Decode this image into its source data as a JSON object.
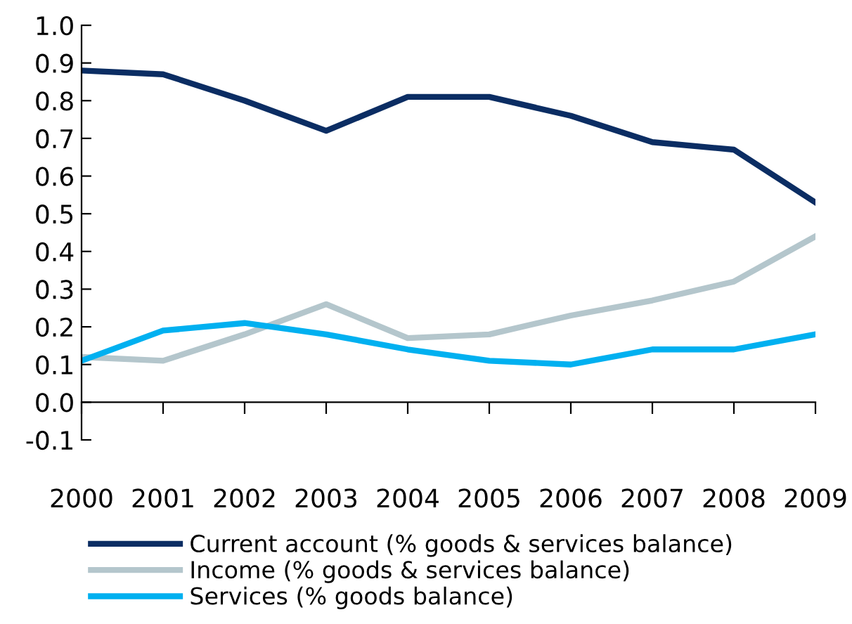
{
  "chart_data": {
    "type": "line",
    "categories": [
      "2000",
      "2001",
      "2002",
      "2003",
      "2004",
      "2005",
      "2006",
      "2007",
      "2008",
      "2009"
    ],
    "series": [
      {
        "name": "Current account (% goods & services balance)",
        "color": "#0b2d63",
        "values": [
          0.88,
          0.87,
          0.8,
          0.72,
          0.81,
          0.81,
          0.76,
          0.69,
          0.67,
          0.53
        ]
      },
      {
        "name": "Income (% goods & services balance)",
        "color": "#b4c6cc",
        "values": [
          0.12,
          0.11,
          0.18,
          0.26,
          0.17,
          0.18,
          0.23,
          0.27,
          0.32,
          0.44
        ]
      },
      {
        "name": "Services (% goods balance)",
        "color": "#00b0f0",
        "values": [
          0.11,
          0.19,
          0.21,
          0.18,
          0.14,
          0.11,
          0.1,
          0.14,
          0.14,
          0.18
        ]
      }
    ],
    "ylim": [
      -0.1,
      1.0
    ],
    "yticks": [
      {
        "value": -0.1,
        "label": "-0.1"
      },
      {
        "value": 0,
        "label": "0.0"
      },
      {
        "value": 0.1,
        "label": "0.1"
      },
      {
        "value": 0.2,
        "label": "0.2"
      },
      {
        "value": 0.3,
        "label": "0.3"
      },
      {
        "value": 0.4,
        "label": "0.4"
      },
      {
        "value": 0.5,
        "label": "0.5"
      },
      {
        "value": 0.6,
        "label": "0.6"
      },
      {
        "value": 0.7,
        "label": "0.7"
      },
      {
        "value": 0.8,
        "label": "0.8"
      },
      {
        "value": 0.9,
        "label": "0.9"
      },
      {
        "value": 1.0,
        "label": "1.0"
      }
    ],
    "legend": "bottom",
    "marker": "none",
    "line_style": "solid"
  }
}
